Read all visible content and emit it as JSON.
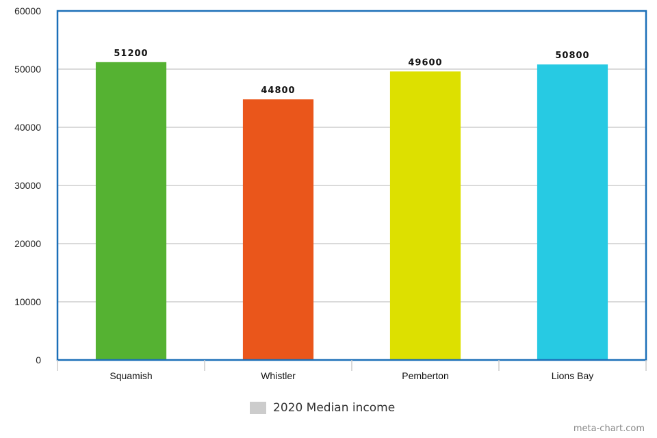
{
  "chart_data": {
    "type": "bar",
    "title": "",
    "xlabel": "",
    "ylabel": "",
    "categories": [
      "Squamish",
      "Whistler",
      "Pemberton",
      "Lions Bay"
    ],
    "series": [
      {
        "name": "2020 Median income",
        "values": [
          51200,
          44800,
          49600,
          50800
        ]
      }
    ],
    "bar_colors": [
      "#55b232",
      "#ea561b",
      "#dde000",
      "#27cae3"
    ],
    "ylim": [
      0,
      60000
    ],
    "yticks": [
      0,
      10000,
      20000,
      30000,
      40000,
      50000,
      60000
    ],
    "grid": true,
    "legend_position": "bottom-center",
    "frame_color": "#1b6fb8",
    "grid_color": "#c4c4c4"
  },
  "legend": {
    "label": "2020 Median income",
    "swatch_color": "#cccccc"
  },
  "watermark": "meta-chart.com"
}
